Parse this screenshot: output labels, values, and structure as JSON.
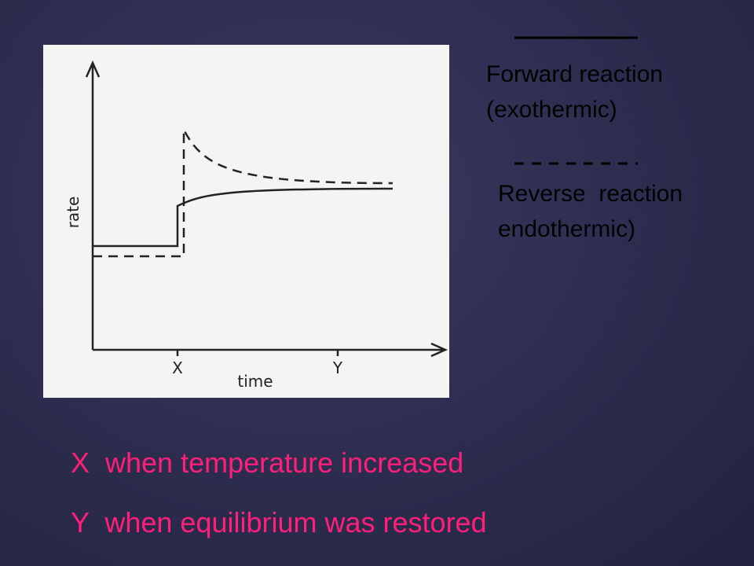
{
  "graph": {
    "y_axis_label": "rate",
    "x_axis_label": "time",
    "marker_x": "X",
    "marker_y": "Y"
  },
  "legend": {
    "forward": [
      "Forward reaction",
      "(exothermic)"
    ],
    "reverse": [
      "Reverse  reaction",
      "endothermic)"
    ]
  },
  "notes": [
    "X  when temperature increased",
    "Y  when equilibrium was restored"
  ]
}
